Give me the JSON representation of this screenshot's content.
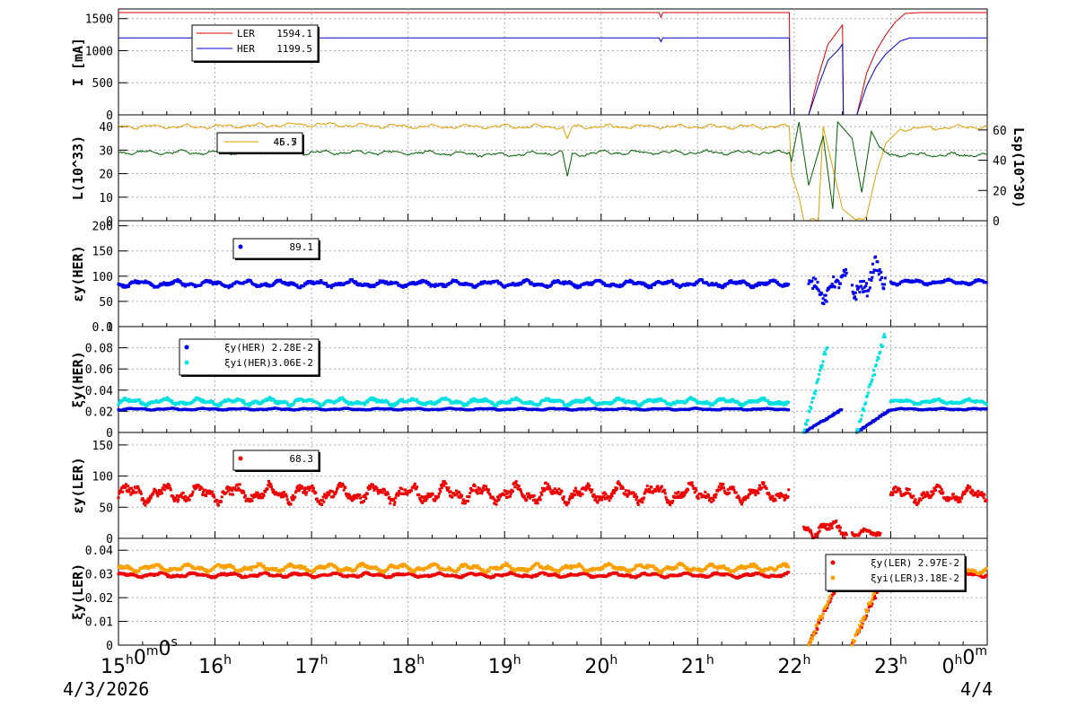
{
  "chart_data": [
    {
      "type": "line",
      "ylabel": "I [mA]",
      "ylim": [
        0,
        1650
      ],
      "yticks": [
        "0",
        "500",
        "1000",
        "1500"
      ],
      "grid": true,
      "legend": [
        {
          "name": "LER",
          "value": "1594.1",
          "color": "#dd0000"
        },
        {
          "name": "HER",
          "value": "1199.5",
          "color": "#0000cc"
        }
      ],
      "series": [
        {
          "name": "LER",
          "color": "#dd0000",
          "points": [
            [
              15.0,
              1594
            ],
            [
              20.6,
              1594
            ],
            [
              20.62,
              1520
            ],
            [
              20.64,
              1594
            ],
            [
              21.95,
              1594
            ],
            [
              21.96,
              0
            ],
            [
              22.15,
              0
            ],
            [
              22.25,
              600
            ],
            [
              22.35,
              1100
            ],
            [
              22.45,
              1300
            ],
            [
              22.5,
              1400
            ],
            [
              22.51,
              0
            ],
            [
              22.65,
              0
            ],
            [
              22.75,
              650
            ],
            [
              22.85,
              1000
            ],
            [
              22.95,
              1250
            ],
            [
              23.05,
              1450
            ],
            [
              23.15,
              1580
            ],
            [
              23.3,
              1594
            ],
            [
              24.0,
              1594
            ]
          ]
        },
        {
          "name": "HER",
          "color": "#0000cc",
          "points": [
            [
              15.0,
              1199
            ],
            [
              20.6,
              1199
            ],
            [
              20.62,
              1140
            ],
            [
              20.64,
              1199
            ],
            [
              21.95,
              1199
            ],
            [
              21.96,
              0
            ],
            [
              22.15,
              0
            ],
            [
              22.25,
              450
            ],
            [
              22.35,
              850
            ],
            [
              22.45,
              1000
            ],
            [
              22.5,
              1100
            ],
            [
              22.51,
              0
            ],
            [
              22.65,
              0
            ],
            [
              22.75,
              450
            ],
            [
              22.85,
              750
            ],
            [
              22.95,
              950
            ],
            [
              23.1,
              1150
            ],
            [
              23.2,
              1199
            ],
            [
              24.0,
              1199
            ]
          ]
        }
      ]
    },
    {
      "type": "line",
      "ylabel": "L(10^33)",
      "ylim": [
        0,
        45
      ],
      "yticks": [
        "0",
        "10",
        "20",
        "30",
        "40"
      ],
      "ylabel_right": "Lsp(10^30)",
      "yticks_right": [
        "0",
        "20",
        "40",
        "60"
      ],
      "grid": true,
      "legend_values": [
        "46.7",
        "45.5"
      ],
      "series": [
        {
          "color": "#e0a000",
          "points": [
            [
              15.0,
              40
            ],
            [
              16.0,
              40
            ],
            [
              17.0,
              41
            ],
            [
              18.0,
              40
            ],
            [
              19.0,
              40
            ],
            [
              19.6,
              40
            ],
            [
              19.65,
              35
            ],
            [
              19.7,
              40
            ],
            [
              20.0,
              40
            ],
            [
              21.0,
              40
            ],
            [
              21.95,
              40
            ],
            [
              21.97,
              20
            ],
            [
              22.05,
              10
            ],
            [
              22.1,
              0
            ],
            [
              22.25,
              0
            ],
            [
              22.3,
              40
            ],
            [
              22.5,
              5
            ],
            [
              22.65,
              0
            ],
            [
              22.75,
              2
            ],
            [
              22.85,
              20
            ],
            [
              22.95,
              33
            ],
            [
              23.1,
              39
            ],
            [
              24.0,
              40
            ]
          ]
        },
        {
          "color": "#006000",
          "points": [
            [
              15.0,
              29
            ],
            [
              16.0,
              29
            ],
            [
              17.0,
              29
            ],
            [
              18.0,
              29
            ],
            [
              19.0,
              28
            ],
            [
              19.6,
              29
            ],
            [
              19.65,
              19
            ],
            [
              19.7,
              28
            ],
            [
              20.0,
              29
            ],
            [
              21.0,
              29
            ],
            [
              21.95,
              29
            ],
            [
              21.97,
              25
            ],
            [
              22.05,
              42
            ],
            [
              22.15,
              15
            ],
            [
              22.3,
              36
            ],
            [
              22.4,
              5
            ],
            [
              22.45,
              42
            ],
            [
              22.6,
              35
            ],
            [
              22.7,
              12
            ],
            [
              22.8,
              38
            ],
            [
              22.9,
              30
            ],
            [
              23.0,
              28
            ],
            [
              24.0,
              28
            ]
          ]
        }
      ]
    },
    {
      "type": "scatter",
      "ylabel": "εy(HER)",
      "ylim": [
        0,
        210
      ],
      "yticks": [
        "0",
        "50",
        "100",
        "150",
        "200"
      ],
      "grid": true,
      "legend": [
        {
          "value": "89.1",
          "color": "#0000ee"
        }
      ],
      "series": [
        {
          "color": "#0000ee",
          "segments": [
            [
              15.0,
              21.95,
              85,
              8
            ],
            [
              22.15,
              22.55,
              80,
              35
            ],
            [
              22.6,
              22.95,
              90,
              45
            ],
            [
              23.0,
              24.0,
              88,
              6
            ]
          ]
        }
      ]
    },
    {
      "type": "scatter",
      "ylabel": "ξy(HER)",
      "ylim": [
        0,
        0.1
      ],
      "yticks": [
        "0",
        "0.02",
        "0.04",
        "0.06",
        "0.08",
        "0.1"
      ],
      "grid": true,
      "legend": [
        {
          "name": "ξy(HER)",
          "value": "2.28E-2",
          "color": "#0000dd"
        },
        {
          "name": "ξyi(HER)",
          "value": "3.06E-2",
          "color": "#00e0e0"
        }
      ],
      "series": [
        {
          "name": "ξy(HER)",
          "color": "#0000dd",
          "segments": [
            [
              15.0,
              21.95,
              0.022,
              0.001
            ],
            [
              23.0,
              24.0,
              0.022,
              0.001
            ]
          ],
          "ramps": [
            [
              22.1,
              22.5,
              0.0,
              0.022
            ],
            [
              22.65,
              23.0,
              0.0,
              0.022
            ]
          ]
        },
        {
          "name": "ξyi(HER)",
          "color": "#00e0e0",
          "segments": [
            [
              15.0,
              21.95,
              0.029,
              0.004
            ],
            [
              23.0,
              24.0,
              0.029,
              0.003
            ]
          ],
          "ramps": [
            [
              22.1,
              22.35,
              0.0,
              0.085
            ],
            [
              22.65,
              22.95,
              0.0,
              0.095
            ]
          ]
        }
      ]
    },
    {
      "type": "scatter",
      "ylabel": "εy(LER)",
      "ylim": [
        0,
        170
      ],
      "yticks": [
        "0",
        "50",
        "100",
        "150"
      ],
      "grid": true,
      "legend": [
        {
          "value": "68.3",
          "color": "#ee0000"
        }
      ],
      "series": [
        {
          "color": "#ee0000",
          "segments": [
            [
              15.0,
              21.95,
              72,
              18
            ],
            [
              22.1,
              22.55,
              15,
              15
            ],
            [
              22.6,
              22.9,
              8,
              8
            ],
            [
              23.0,
              24.0,
              70,
              15
            ]
          ]
        }
      ]
    },
    {
      "type": "scatter",
      "ylabel": "ξy(LER)",
      "ylim": [
        0,
        0.045
      ],
      "yticks": [
        "0",
        "0.01",
        "0.02",
        "0.03",
        "0.04"
      ],
      "grid": true,
      "legend": [
        {
          "name": "ξy(LER)",
          "value": "2.97E-2",
          "color": "#ee0000"
        },
        {
          "name": "ξyi(LER)",
          "value": "3.18E-2",
          "color": "#ffa000"
        }
      ],
      "series": [
        {
          "name": "ξy(LER)",
          "color": "#ee0000",
          "segments": [
            [
              15.0,
              21.95,
              0.0295,
              0.0012
            ],
            [
              23.0,
              24.0,
              0.0298,
              0.0012
            ]
          ],
          "ramps": [
            [
              22.15,
              22.5,
              0.0,
              0.03
            ],
            [
              22.6,
              22.95,
              0.0,
              0.03
            ]
          ]
        },
        {
          "name": "ξyi(LER)",
          "color": "#ffa000",
          "segments": [
            [
              15.0,
              21.95,
              0.0325,
              0.002
            ],
            [
              23.0,
              24.0,
              0.0315,
              0.0015
            ]
          ],
          "ramps": [
            [
              22.15,
              22.5,
              0.0,
              0.033
            ],
            [
              22.6,
              22.95,
              0.0,
              0.034
            ]
          ]
        }
      ]
    }
  ],
  "x_axis": {
    "range": [
      15,
      24
    ],
    "labels": [
      {
        "main": "15",
        "sup": "h",
        "main2": "0",
        "sup2": "m",
        "main3": "0",
        "sup3": "s"
      },
      {
        "main": "16",
        "sup": "h"
      },
      {
        "main": "17",
        "sup": "h"
      },
      {
        "main": "18",
        "sup": "h"
      },
      {
        "main": "19",
        "sup": "h"
      },
      {
        "main": "20",
        "sup": "h"
      },
      {
        "main": "21",
        "sup": "h"
      },
      {
        "main": "22",
        "sup": "h"
      },
      {
        "main": "23",
        "sup": "h"
      },
      {
        "main": "0",
        "sup": "h",
        "main2": "0",
        "sup2": "m"
      }
    ],
    "date_left": "4/3/2026",
    "date_right": "4/4"
  }
}
